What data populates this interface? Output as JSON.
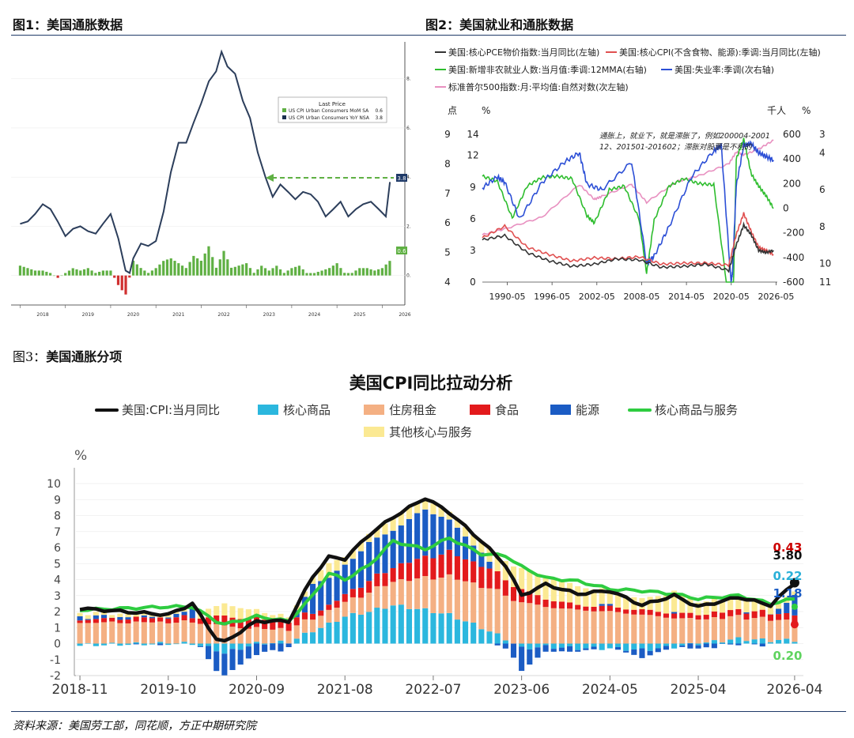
{
  "figure1": {
    "header": "图1：美国通胀数据",
    "legend_title": "Last Price",
    "legend_items": [
      {
        "label": "US CPI Urban Consumers MoM SA",
        "value": "0.6",
        "color": "#5fb043"
      },
      {
        "label": "US CPI Urban Consumers YoY NSA",
        "value": "3.8",
        "color": "#1b2f4f"
      }
    ],
    "y_ticks": [
      "8.0",
      "6.0",
      "4.0",
      "2.0",
      "0.0"
    ],
    "x_ticks": [
      "2018",
      "2019",
      "2020",
      "2021",
      "2022",
      "2023",
      "2024",
      "2025",
      "2026"
    ],
    "last_yoy_label": "3.8",
    "last_mom_label": "0.6",
    "chart_data": {
      "type": "line",
      "series": [
        {
          "name": "US CPI Urban Consumers YoY NSA",
          "x": [
            2018.0,
            2018.17,
            2018.33,
            2018.5,
            2018.67,
            2018.83,
            2019.0,
            2019.17,
            2019.33,
            2019.5,
            2019.67,
            2019.83,
            2020.0,
            2020.17,
            2020.33,
            2020.42,
            2020.5,
            2020.67,
            2020.83,
            2021.0,
            2021.17,
            2021.33,
            2021.5,
            2021.67,
            2021.83,
            2022.0,
            2022.17,
            2022.33,
            2022.45,
            2022.58,
            2022.75,
            2022.92,
            2023.08,
            2023.25,
            2023.42,
            2023.58,
            2023.75,
            2023.92,
            2024.08,
            2024.25,
            2024.42,
            2024.58,
            2024.75,
            2024.92,
            2025.08,
            2025.25,
            2025.42,
            2025.58,
            2025.75,
            2025.92,
            2026.08,
            2026.17
          ],
          "y": [
            2.1,
            2.2,
            2.5,
            2.9,
            2.7,
            2.2,
            1.6,
            1.9,
            2.0,
            1.8,
            1.7,
            2.1,
            2.5,
            1.5,
            0.2,
            0.1,
            0.7,
            1.3,
            1.2,
            1.4,
            2.6,
            4.2,
            5.4,
            5.4,
            6.2,
            7.0,
            7.9,
            8.3,
            9.1,
            8.5,
            8.2,
            7.1,
            6.4,
            5.0,
            4.0,
            3.2,
            3.7,
            3.4,
            3.1,
            3.4,
            3.3,
            3.0,
            2.4,
            2.7,
            3.0,
            2.4,
            2.7,
            2.9,
            3.0,
            2.7,
            2.4,
            3.8
          ]
        },
        {
          "name": "US CPI Urban Consumers MoM SA",
          "x": [
            2018.0,
            2018.17,
            2018.33,
            2018.5,
            2018.67,
            2018.83,
            2019.0,
            2019.17,
            2019.33,
            2019.5,
            2019.67,
            2019.83,
            2020.0,
            2020.17,
            2020.33,
            2020.5,
            2020.67,
            2020.83,
            2021.0,
            2021.17,
            2021.33,
            2021.5,
            2021.67,
            2021.83,
            2022.0,
            2022.17,
            2022.33,
            2022.5,
            2022.67,
            2022.83,
            2023.0,
            2023.17,
            2023.33,
            2023.5,
            2023.67,
            2023.83,
            2024.0,
            2024.17,
            2024.33,
            2024.5,
            2024.67,
            2024.83,
            2025.0,
            2025.17,
            2025.33,
            2025.5,
            2025.67,
            2025.83,
            2026.0,
            2026.17
          ],
          "y": [
            0.4,
            0.3,
            0.2,
            0.2,
            0.1,
            -0.1,
            0.1,
            0.3,
            0.2,
            0.3,
            0.1,
            0.2,
            0.2,
            -0.4,
            -0.8,
            0.6,
            0.3,
            0.1,
            0.3,
            0.6,
            0.7,
            0.5,
            0.3,
            0.8,
            0.6,
            1.2,
            0.3,
            1.0,
            0.3,
            0.4,
            0.5,
            0.1,
            0.4,
            0.2,
            0.4,
            0.1,
            0.3,
            0.4,
            0.1,
            0.1,
            0.2,
            0.3,
            0.5,
            0.1,
            0.1,
            0.3,
            0.3,
            0.2,
            0.3,
            0.6
          ]
        }
      ],
      "ylim": [
        -1.2,
        9.5
      ],
      "xlim": [
        2017.8,
        2026.5
      ],
      "legend_position": "top-right",
      "annotation": "dashed arrow at 3.8"
    }
  },
  "figure2": {
    "header": "图2：美国就业和通胀数据",
    "legend": [
      {
        "label": "美国:核心PCE物价指数:当月同比(左轴)",
        "color": "#333333"
      },
      {
        "label": "美国:核心CPI(不含食物、能源):季调:当月同比(左轴)",
        "color": "#e05050"
      },
      {
        "label": "美国:新增非农就业人数:当月值:季调:12MMA(右轴)",
        "color": "#2ebd2e"
      },
      {
        "label": "美国:失业率:季调(次右轴)",
        "color": "#2c4fd6"
      },
      {
        "label": "标准普尔500指数:月:平均值:自然对数(次左轴)",
        "color": "#e890c0"
      }
    ],
    "unit_labels": {
      "far_left": "点",
      "left": "%",
      "right": "千人",
      "far_right": "%"
    },
    "ticks_far_left": [
      "9",
      "8",
      "7",
      "6",
      "5",
      "4"
    ],
    "ticks_left": [
      "14",
      "12",
      "9",
      "6",
      "3",
      "0"
    ],
    "ticks_right": [
      "600",
      "400",
      "200",
      "0",
      "-200",
      "-400",
      "-600"
    ],
    "ticks_far_right": [
      "3",
      "4",
      "6",
      "8",
      "10",
      "11"
    ],
    "x_ticks": [
      "1990-05",
      "1996-05",
      "2002-05",
      "2008-05",
      "2014-05",
      "2020-05",
      "2026-05"
    ],
    "annotation_line1": "通胀上，就业下，就是滞胀了，例如200004-2001",
    "annotation_line2": "12、201501-201602；滞胀对股票是不利的",
    "chart_data": {
      "type": "line",
      "series": [
        {
          "name": "美国:核心PCE物价指数:当月同比(左轴)",
          "axis": "left",
          "x": [
            1987,
            1990,
            1993,
            1996,
            1999,
            2002,
            2005,
            2008,
            2011,
            2014,
            2017,
            2020,
            2021,
            2022,
            2023,
            2024,
            2025,
            2026
          ],
          "y": [
            4.0,
            4.4,
            2.8,
            2.0,
            1.5,
            1.7,
            2.2,
            2.1,
            1.4,
            1.5,
            1.7,
            1.1,
            3.5,
            5.4,
            4.5,
            3.0,
            2.8,
            3.0
          ]
        },
        {
          "name": "美国:核心CPI(不含食物、能源):季调:当月同比(左轴)",
          "axis": "left",
          "x": [
            1987,
            1990,
            1993,
            1996,
            1999,
            2002,
            2005,
            2008,
            2011,
            2014,
            2017,
            2020,
            2021,
            2022,
            2023,
            2024,
            2025,
            2026
          ],
          "y": [
            4.2,
            5.3,
            3.3,
            2.6,
            2.0,
            2.3,
            2.2,
            2.4,
            1.7,
            1.8,
            1.8,
            1.6,
            4.5,
            6.5,
            4.8,
            3.3,
            3.0,
            2.6
          ]
        },
        {
          "name": "美国:新增非农就业人数:当月值:季调:12MMA(右轴)",
          "axis": "right",
          "x": [
            1987,
            1989,
            1991,
            1993,
            1995,
            1997,
            1999,
            2001,
            2002,
            2004,
            2006,
            2008,
            2009,
            2010,
            2012,
            2014,
            2016,
            2018,
            2020,
            2020.5,
            2021,
            2022,
            2023,
            2024,
            2025,
            2026
          ],
          "y": [
            260,
            220,
            -80,
            180,
            250,
            260,
            240,
            -60,
            -120,
            150,
            180,
            -90,
            -530,
            -100,
            180,
            240,
            200,
            190,
            -750,
            -1000,
            400,
            560,
            280,
            180,
            100,
            0
          ]
        },
        {
          "name": "美国:失业率:季调(次右轴)",
          "axis": "far_right",
          "x": [
            1987,
            1989,
            1990,
            1992,
            1995,
            1998,
            2000,
            2001,
            2003,
            2007,
            2009,
            2010,
            2012,
            2015,
            2018,
            2019,
            2020.3,
            2020.5,
            2021,
            2022,
            2023,
            2024,
            2025,
            2026
          ],
          "y": [
            5.9,
            5.3,
            5.6,
            7.6,
            5.6,
            4.5,
            4.0,
            5.7,
            6.0,
            4.5,
            10.0,
            9.6,
            8.0,
            5.3,
            3.9,
            3.6,
            11.0,
            10.5,
            5.8,
            3.6,
            3.5,
            4.0,
            4.2,
            4.4
          ]
        },
        {
          "name": "标准普尔500指数:月:平均值:自然对数(次左轴)",
          "axis": "far_left",
          "x": [
            1987,
            1990,
            1995,
            2000,
            2002,
            2003,
            2007,
            2009,
            2013,
            2016,
            2020,
            2021,
            2022,
            2024,
            2026
          ],
          "y": [
            5.6,
            5.8,
            6.2,
            7.3,
            6.8,
            6.9,
            7.3,
            6.7,
            7.4,
            7.6,
            8.0,
            8.4,
            8.3,
            8.5,
            8.8
          ]
        }
      ],
      "left_axis_range": [
        0,
        14
      ],
      "far_left_axis_range": [
        4,
        9
      ],
      "right_axis_range": [
        -600,
        600
      ],
      "far_right_axis_range": [
        11,
        3
      ],
      "xlim": [
        1987,
        2026.5
      ]
    }
  },
  "figure3": {
    "header_prefix": "图3：",
    "header": "美国通胀分项",
    "title": "美国CPI同比拉动分析",
    "unit": "%",
    "y_ticks": [
      "10",
      "9",
      "8",
      "7",
      "6",
      "5",
      "4",
      "3",
      "2",
      "1",
      "0",
      "-1",
      "-2"
    ],
    "x_ticks": [
      "2018-11",
      "2019-10",
      "2020-09",
      "2021-08",
      "2022-07",
      "2023-06",
      "2024-05",
      "2025-04",
      "2026-04"
    ],
    "end_labels": [
      {
        "text": "0.43",
        "color": "#cc0000"
      },
      {
        "text": "3.80",
        "color": "#111111"
      },
      {
        "text": "0.22",
        "color": "#2ab0d8"
      },
      {
        "text": "1.18",
        "color": "#1b5cc4"
      },
      {
        "text": "0.20",
        "color": "#5fd35f"
      }
    ],
    "chart_data": {
      "type": "bar",
      "stacked": true,
      "legend_position": "top",
      "ylim": [
        -2,
        10
      ],
      "key_x": [
        "2018-11",
        "2019-10",
        "2020-01",
        "2020-04",
        "2020-05",
        "2020-09",
        "2021-01",
        "2021-04",
        "2021-06",
        "2021-08",
        "2021-11",
        "2022-02",
        "2022-06",
        "2022-09",
        "2023-01",
        "2023-04",
        "2023-06",
        "2023-09",
        "2024-01",
        "2024-05",
        "2024-09",
        "2025-01",
        "2025-04",
        "2025-09",
        "2026-01",
        "2026-04"
      ],
      "series": [
        {
          "name": "美国:CPI:当月同比",
          "color": "#111111",
          "kind": "line",
          "y": [
            2.2,
            1.8,
            2.5,
            0.3,
            0.1,
            1.4,
            1.4,
            4.2,
            5.4,
            5.3,
            6.8,
            7.9,
            9.1,
            8.2,
            6.4,
            4.9,
            3.0,
            3.7,
            3.1,
            3.3,
            2.4,
            3.0,
            2.3,
            2.9,
            2.4,
            3.8
          ]
        },
        {
          "name": "核心商品",
          "color": "#2bb7de",
          "kind": "bar",
          "y": [
            -0.1,
            0.0,
            0.0,
            -0.4,
            -0.6,
            0.0,
            0.1,
            0.8,
            1.2,
            1.7,
            2.0,
            2.4,
            2.1,
            1.8,
            1.0,
            0.3,
            -0.3,
            -0.2,
            -0.3,
            -0.3,
            -0.4,
            -0.2,
            0.0,
            0.3,
            0.2,
            0.22
          ]
        },
        {
          "name": "住房租金",
          "color": "#f4b083",
          "kind": "bar",
          "y": [
            1.3,
            1.3,
            1.3,
            1.2,
            1.1,
            0.9,
            0.8,
            0.8,
            0.8,
            0.9,
            1.2,
            1.5,
            2.0,
            2.4,
            2.6,
            2.8,
            2.6,
            2.3,
            2.1,
            2.0,
            1.8,
            1.6,
            1.5,
            1.4,
            1.3,
            1.2
          ]
        },
        {
          "name": "食品",
          "color": "#e31a1c",
          "kind": "bar",
          "y": [
            0.2,
            0.3,
            0.3,
            0.5,
            0.6,
            0.6,
            0.5,
            0.4,
            0.3,
            0.5,
            0.7,
            0.9,
            1.3,
            1.5,
            1.3,
            1.0,
            0.8,
            0.5,
            0.3,
            0.3,
            0.3,
            0.3,
            0.3,
            0.4,
            0.4,
            0.43
          ]
        },
        {
          "name": "能源",
          "color": "#1b5cc4",
          "kind": "bar",
          "y": [
            0.2,
            0.0,
            0.5,
            -1.3,
            -1.4,
            -0.6,
            -0.3,
            1.8,
            1.8,
            1.8,
            2.4,
            2.3,
            3.0,
            2.0,
            0.8,
            -0.4,
            -1.4,
            -0.3,
            -0.2,
            0.1,
            -0.5,
            0.0,
            -0.3,
            0.0,
            -0.1,
            1.18
          ]
        },
        {
          "name": "核心商品与服务",
          "color": "#2ecc40",
          "kind": "line",
          "y": [
            2.1,
            2.3,
            2.3,
            1.4,
            1.2,
            1.7,
            1.4,
            3.0,
            4.4,
            4.0,
            4.9,
            6.4,
            5.9,
            6.6,
            5.6,
            5.5,
            4.8,
            4.1,
            3.9,
            3.4,
            3.3,
            3.1,
            2.8,
            3.0,
            2.5,
            2.8
          ]
        },
        {
          "name": "其他核心与服务",
          "color": "#fbe993",
          "kind": "bar",
          "y": [
            0.2,
            0.2,
            0.3,
            0.6,
            0.8,
            0.5,
            0.3,
            0.4,
            0.9,
            0.5,
            0.5,
            0.8,
            0.7,
            0.5,
            0.7,
            1.2,
            1.3,
            1.4,
            1.2,
            0.9,
            0.7,
            1.3,
            0.8,
            0.8,
            0.6,
            0.2
          ]
        }
      ]
    }
  },
  "source": "资料来源：美国劳工部，同花顺，方正中期研究院"
}
